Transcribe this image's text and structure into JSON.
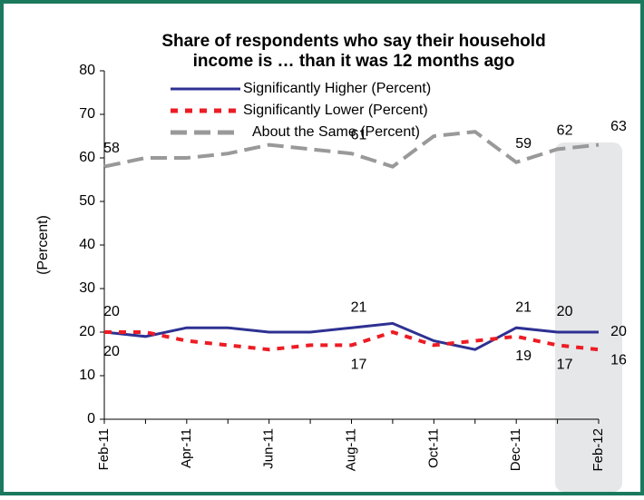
{
  "chart_data": {
    "type": "line",
    "title": [
      "Share of respondents who say their household",
      "income is … than  it was 12 months ago"
    ],
    "y_label": "(Percent)",
    "categories": [
      "Feb-11",
      null,
      "Apr-11",
      null,
      "Jun-11",
      null,
      "Aug-11",
      null,
      "Oct-11",
      null,
      "Dec-11",
      null,
      "Feb-12"
    ],
    "ylim": [
      0,
      80
    ],
    "yticks": [
      0,
      10,
      20,
      30,
      40,
      50,
      60,
      70,
      80
    ],
    "series": [
      {
        "name": "Significantly Higher (Percent)",
        "color": "#2e3192",
        "style": "solid",
        "label_color": "#2e3192",
        "values": [
          20,
          19,
          21,
          21,
          20,
          20,
          21,
          22,
          18,
          16,
          21,
          20,
          20
        ],
        "value_labels": [
          "20",
          null,
          null,
          null,
          null,
          null,
          "21",
          null,
          null,
          null,
          "21",
          "20",
          "20"
        ]
      },
      {
        "name": "Significantly Lower (Percent)",
        "color": "#ed1c24",
        "style": "dotted",
        "label_color": "#ed1c24",
        "values": [
          20,
          20,
          18,
          17,
          16,
          17,
          17,
          20,
          17,
          18,
          19,
          17,
          16
        ],
        "value_labels": [
          "20",
          null,
          null,
          null,
          null,
          null,
          "17",
          null,
          null,
          null,
          "19",
          "17",
          "16"
        ]
      },
      {
        "name": "About the Same (Percent)",
        "color": "#999999",
        "style": "dashed",
        "label_color": "#000000",
        "values": [
          58,
          60,
          60,
          61,
          63,
          62,
          61,
          58,
          65,
          66,
          59,
          62,
          63
        ],
        "value_labels": [
          "58",
          null,
          null,
          null,
          null,
          null,
          "61",
          null,
          null,
          null,
          "59",
          "62",
          "63"
        ]
      }
    ]
  }
}
